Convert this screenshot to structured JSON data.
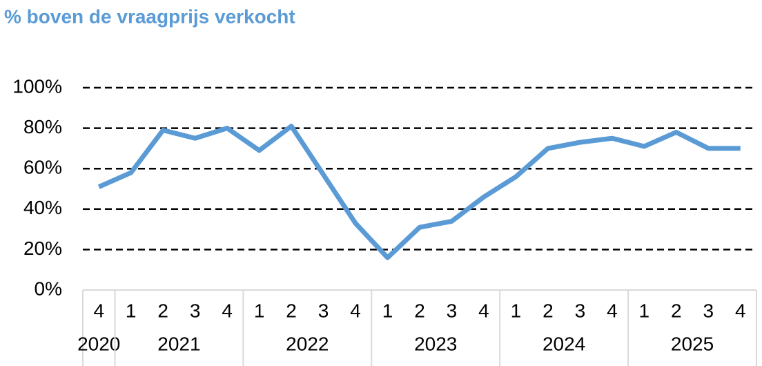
{
  "chart_data": {
    "type": "line",
    "title": "% boven de vraagprijs verkocht",
    "groups": [
      {
        "name": "2020",
        "categories": [
          "4"
        ]
      },
      {
        "name": "2021",
        "categories": [
          "1",
          "2",
          "3",
          "4"
        ]
      },
      {
        "name": "2022",
        "categories": [
          "1",
          "2",
          "3",
          "4"
        ]
      },
      {
        "name": "2023",
        "categories": [
          "1",
          "2",
          "3",
          "4"
        ]
      },
      {
        "name": "2024",
        "categories": [
          "1",
          "2",
          "3",
          "4"
        ]
      },
      {
        "name": "2025",
        "categories": [
          "1",
          "2",
          "3",
          "4"
        ]
      }
    ],
    "values": [
      51,
      58,
      79,
      75,
      80,
      69,
      81,
      57,
      33,
      16,
      31,
      34,
      46,
      56,
      70,
      73,
      75,
      71,
      78,
      70,
      70
    ],
    "color": "#5b9bd5",
    "ylim": [
      0,
      100
    ],
    "yticks": [
      {
        "value": 0,
        "label": "0%"
      },
      {
        "value": 20,
        "label": "20%"
      },
      {
        "value": 40,
        "label": "40%"
      },
      {
        "value": 60,
        "label": "60%"
      },
      {
        "value": 80,
        "label": "80%"
      },
      {
        "value": 100,
        "label": "100%"
      }
    ],
    "grid": true
  }
}
